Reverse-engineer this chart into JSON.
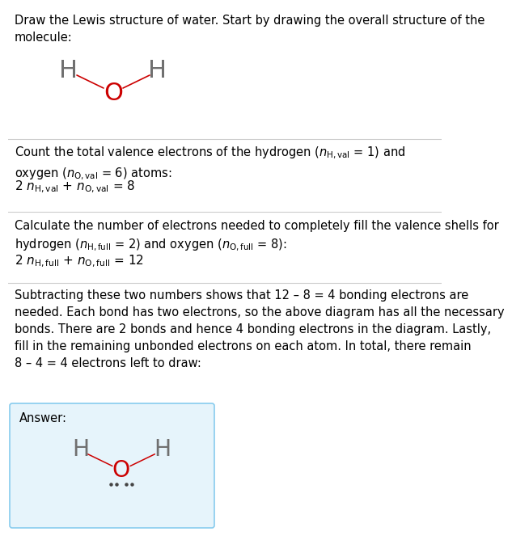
{
  "h_color": "#707070",
  "o_color": "#cc0000",
  "dot_color": "#444444",
  "bond_color": "#cc0000",
  "text_color": "#000000",
  "divider_color": "#cccccc",
  "answer_box_edge": "#88ccee",
  "answer_box_face": "#e6f4fb",
  "font_size_body": 10.5,
  "font_size_atom": 22,
  "font_size_atom_ans": 22,
  "section3_text": "Subtracting these two numbers shows that 12 – 8 = 4 bonding electrons are\nneeded. Each bond has two electrons, so the above diagram has all the necessary\nbonds. There are 2 bonds and hence 4 bonding electrons in the diagram. Lastly,\nfill in the remaining unbonded electrons on each atom. In total, there remain\n8 – 4 = 4 electrons left to draw:"
}
